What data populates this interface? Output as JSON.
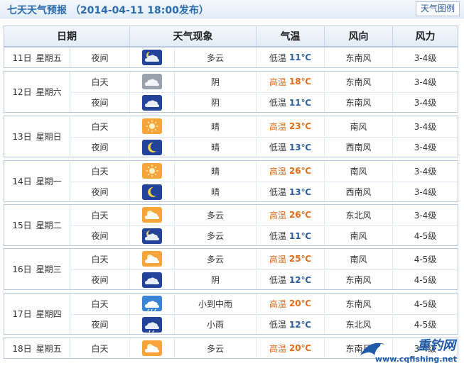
{
  "title": "七天天气预报 （2014-04-11 18:00发布）",
  "legend_button": "天气图例",
  "headers": {
    "date": "日期",
    "phenomenon": "天气现象",
    "temperature": "气温",
    "wind_direction": "风向",
    "wind_force": "风力"
  },
  "days": [
    {
      "date": "11日",
      "weekday": "星期五",
      "periods": [
        {
          "period": "夜间",
          "icon": "partly-cloudy-night-icon",
          "desc": "多云",
          "temp_label": "低温",
          "temp": "11℃",
          "kind": "low",
          "dir": "东南风",
          "force": "3-4级"
        }
      ]
    },
    {
      "date": "12日",
      "weekday": "星期六",
      "periods": [
        {
          "period": "白天",
          "icon": "overcast-day-icon",
          "desc": "阴",
          "temp_label": "高温",
          "temp": "18℃",
          "kind": "high",
          "dir": "东南风",
          "force": "3-4级"
        },
        {
          "period": "夜间",
          "icon": "overcast-night-icon",
          "desc": "阴",
          "temp_label": "低温",
          "temp": "11℃",
          "kind": "low",
          "dir": "东南风",
          "force": "3-4级"
        }
      ]
    },
    {
      "date": "13日",
      "weekday": "星期日",
      "periods": [
        {
          "period": "白天",
          "icon": "sunny-icon",
          "desc": "晴",
          "temp_label": "高温",
          "temp": "23℃",
          "kind": "high",
          "dir": "南风",
          "force": "3-4级"
        },
        {
          "period": "夜间",
          "icon": "clear-night-icon",
          "desc": "晴",
          "temp_label": "低温",
          "temp": "13℃",
          "kind": "low",
          "dir": "西南风",
          "force": "3-4级"
        }
      ]
    },
    {
      "date": "14日",
      "weekday": "星期一",
      "periods": [
        {
          "period": "白天",
          "icon": "sunny-icon",
          "desc": "晴",
          "temp_label": "高温",
          "temp": "26℃",
          "kind": "high",
          "dir": "南风",
          "force": "3-4级"
        },
        {
          "period": "夜间",
          "icon": "clear-night-icon",
          "desc": "晴",
          "temp_label": "低温",
          "temp": "13℃",
          "kind": "low",
          "dir": "西南风",
          "force": "3-4级"
        }
      ]
    },
    {
      "date": "15日",
      "weekday": "星期二",
      "periods": [
        {
          "period": "白天",
          "icon": "partly-cloudy-day-icon",
          "desc": "多云",
          "temp_label": "高温",
          "temp": "26℃",
          "kind": "high",
          "dir": "东北风",
          "force": "3-4级"
        },
        {
          "period": "夜间",
          "icon": "partly-cloudy-night-icon",
          "desc": "多云",
          "temp_label": "低温",
          "temp": "11℃",
          "kind": "low",
          "dir": "南风",
          "force": "4-5级"
        }
      ]
    },
    {
      "date": "16日",
      "weekday": "星期三",
      "periods": [
        {
          "period": "白天",
          "icon": "partly-cloudy-day-icon",
          "desc": "多云",
          "temp_label": "高温",
          "temp": "25℃",
          "kind": "high",
          "dir": "南风",
          "force": "4-5级"
        },
        {
          "period": "夜间",
          "icon": "overcast-night-icon",
          "desc": "阴",
          "temp_label": "低温",
          "temp": "12℃",
          "kind": "low",
          "dir": "东南风",
          "force": "4-5级"
        }
      ]
    },
    {
      "date": "17日",
      "weekday": "星期四",
      "periods": [
        {
          "period": "白天",
          "icon": "moderate-rain-icon",
          "desc": "小到中雨",
          "temp_label": "高温",
          "temp": "20℃",
          "kind": "high",
          "dir": "东南风",
          "force": "4-5级"
        },
        {
          "period": "夜间",
          "icon": "light-rain-night-icon",
          "desc": "小雨",
          "temp_label": "低温",
          "temp": "12℃",
          "kind": "low",
          "dir": "东北风",
          "force": "4-5级"
        }
      ]
    },
    {
      "date": "18日",
      "weekday": "星期五",
      "periods": [
        {
          "period": "白天",
          "icon": "partly-cloudy-day-icon",
          "desc": "多云",
          "temp_label": "高温",
          "temp": "20℃",
          "kind": "high",
          "dir": "东南风",
          "force": "3-4级"
        }
      ]
    }
  ],
  "watermark": {
    "brand": "重钓网",
    "url": "www.cqfishing.net"
  },
  "colors": {
    "title": "#2b6cb0",
    "high_temp": "#e26b17",
    "low_temp": "#2b5d9e",
    "border": "#b7c9e0"
  }
}
